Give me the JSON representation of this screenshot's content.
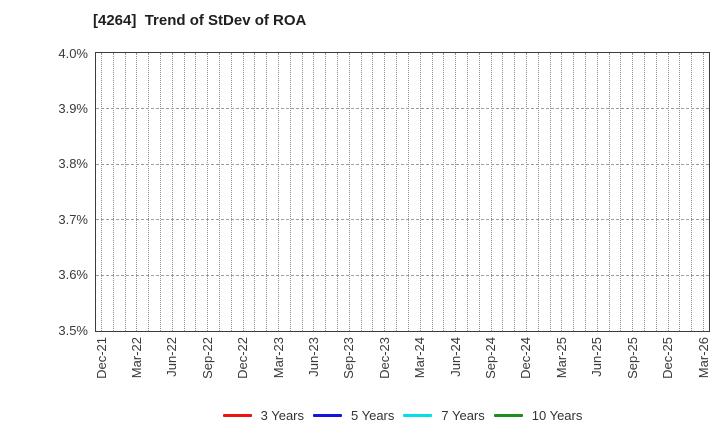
{
  "colors": {
    "background": "#ffffff",
    "plot_border": "#3c3c3c",
    "vertical_grid": "#8f8f8f",
    "horizontal_grid": "#9e9e9e",
    "tick_label_text": "#3a3a3a",
    "title_text": "#1f1f1f",
    "legend_text": "#333333"
  },
  "chart_data": {
    "type": "line",
    "title": "[4264]  Trend of StDev of ROA",
    "xlabel": "",
    "ylabel": "",
    "x_tick_labels": [
      "Dec-21",
      "Mar-22",
      "Jun-22",
      "Sep-22",
      "Dec-22",
      "Mar-23",
      "Jun-23",
      "Sep-23",
      "Dec-23",
      "Mar-24",
      "Jun-24",
      "Sep-24",
      "Dec-24",
      "Mar-25",
      "Jun-25",
      "Sep-25",
      "Dec-25",
      "Mar-26"
    ],
    "months_between_ticks": 3,
    "total_month_intervals": 51,
    "y_tick_labels": [
      "3.5%",
      "3.6%",
      "3.7%",
      "3.8%",
      "3.9%",
      "4.0%"
    ],
    "ylim": [
      3.5,
      4.0
    ],
    "grid": true,
    "grid_style": {
      "vertical": "dotted-monthly",
      "horizontal": "dashed-at-each-0.1%"
    },
    "legend_position": "bottom-center",
    "series": [
      {
        "name": "3 Years",
        "color": "#ee1111",
        "values": []
      },
      {
        "name": "5 Years",
        "color": "#1414dd",
        "values": []
      },
      {
        "name": "7 Years",
        "color": "#00e0e6",
        "values": []
      },
      {
        "name": "10 Years",
        "color": "#1e8c1e",
        "values": []
      }
    ]
  }
}
